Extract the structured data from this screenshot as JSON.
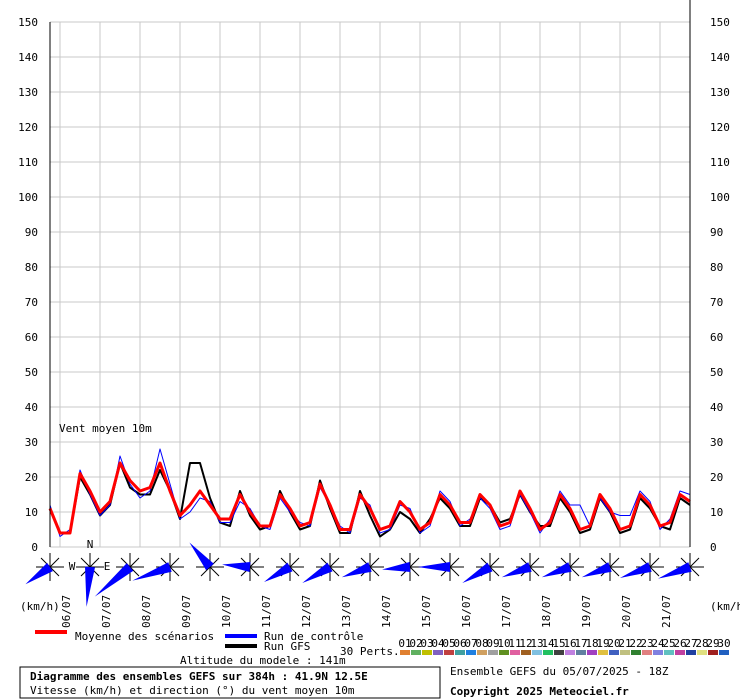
{
  "chart_data": {
    "type": "line",
    "title": "Diagramme des ensembles GEFS sur 384h : 41.9N 12.5E",
    "subtitle": "Vitesse (km/h) et direction (°) du vent moyen 10m",
    "annotation": "Vent moyen 10m",
    "y_unit_left": "(km/h)",
    "y_unit_right": "(km/h)",
    "altitude": "Altitude du modele : 141m",
    "run_info": "Ensemble GEFS du 05/07/2025 - 18Z",
    "copyright": "Copyright 2025 Meteociel.fr",
    "compass_labels": [
      "N",
      "W",
      "E"
    ],
    "categories": [
      null,
      "06/07",
      null,
      null,
      null,
      "07/07",
      null,
      null,
      null,
      "08/07",
      null,
      null,
      null,
      "09/07",
      null,
      null,
      null,
      "10/07",
      null,
      null,
      null,
      "11/07",
      null,
      null,
      null,
      "12/07",
      null,
      null,
      null,
      "13/07",
      null,
      null,
      null,
      "14/07",
      null,
      null,
      null,
      "15/07",
      null,
      null,
      null,
      "16/07",
      null,
      null,
      null,
      "17/07",
      null,
      null,
      null,
      "18/07",
      null,
      null,
      null,
      "19/07",
      null,
      null,
      null,
      "20/07",
      null,
      null,
      null,
      "21/07",
      null,
      null,
      null
    ],
    "series": [
      {
        "name": "Moyenne des scénarios",
        "color": "#ff0000",
        "width": 3,
        "values": [
          11,
          4,
          4,
          21,
          16,
          10,
          13,
          24,
          19,
          16,
          17,
          24,
          16,
          9,
          12,
          16,
          12,
          8,
          8,
          15,
          10,
          6,
          6,
          15,
          11,
          6,
          7,
          18,
          12,
          5,
          5,
          15,
          11,
          5,
          6,
          13,
          10,
          5,
          7,
          15,
          12,
          7,
          7,
          15,
          12,
          6,
          7,
          16,
          11,
          5,
          7,
          15,
          11,
          5,
          6,
          15,
          11,
          5,
          6,
          15,
          12,
          6,
          7,
          15,
          13
        ]
      },
      {
        "name": "Run de contrôle",
        "color": "#0000ff",
        "width": 1,
        "values": [
          12,
          3,
          5,
          22,
          15,
          9,
          12,
          26,
          18,
          14,
          16,
          28,
          18,
          8,
          10,
          14,
          13,
          7,
          7,
          13,
          11,
          6,
          5,
          14,
          10,
          7,
          6,
          17,
          12,
          6,
          4,
          14,
          12,
          4,
          5,
          12,
          11,
          4,
          6,
          16,
          13,
          6,
          8,
          14,
          11,
          5,
          6,
          15,
          10,
          4,
          8,
          16,
          12,
          12,
          6,
          14,
          10,
          9,
          9,
          16,
          13,
          5,
          8,
          16,
          15
        ]
      },
      {
        "name": "Run GFS",
        "color": "#000000",
        "width": 2,
        "values": [
          11,
          4,
          4,
          20,
          15,
          9,
          12,
          24,
          17,
          15,
          15,
          22,
          16,
          8,
          24,
          24,
          14,
          7,
          6,
          16,
          9,
          5,
          6,
          16,
          10,
          5,
          6,
          19,
          11,
          4,
          4,
          16,
          9,
          3,
          5,
          10,
          8,
          4,
          8,
          14,
          11,
          6,
          6,
          14,
          12,
          7,
          8,
          15,
          10,
          6,
          6,
          14,
          10,
          4,
          5,
          14,
          10,
          4,
          5,
          14,
          11,
          6,
          5,
          14,
          12
        ]
      }
    ],
    "perturbations": {
      "label": "30 Perts.",
      "names": [
        "01",
        "02",
        "03",
        "04",
        "05",
        "06",
        "07",
        "08",
        "09",
        "10",
        "11",
        "12",
        "13",
        "14",
        "15",
        "16",
        "17",
        "18",
        "19",
        "20",
        "21",
        "22",
        "23",
        "24",
        "25",
        "26",
        "27",
        "28",
        "29",
        "30"
      ],
      "colors": [
        "#e08030",
        "#60b060",
        "#c0c000",
        "#8060c0",
        "#c04040",
        "#40a0a0",
        "#2080e0",
        "#d0a060",
        "#a0a0a0",
        "#609020",
        "#e060a0",
        "#a06020",
        "#80c0e0",
        "#20c060",
        "#404040",
        "#c080e0",
        "#6080a0",
        "#a040c0",
        "#e0c040",
        "#4060c0",
        "#c0c080",
        "#308030",
        "#e08080",
        "#8080e0",
        "#60c0c0",
        "#c040a0",
        "#2040a0",
        "#e0e080",
        "#a02020",
        "#2060c0"
      ]
    },
    "wind_dir": [
      145,
      95,
      140,
      160,
      230,
      185,
      150,
      150,
      160,
      175,
      180,
      150,
      160,
      160,
      160,
      160,
      160
    ],
    "ylim": [
      0,
      150
    ],
    "yticks": [
      0,
      10,
      20,
      30,
      40,
      50,
      60,
      70,
      80,
      90,
      100,
      110,
      120,
      130,
      140,
      150
    ],
    "grid": true
  }
}
